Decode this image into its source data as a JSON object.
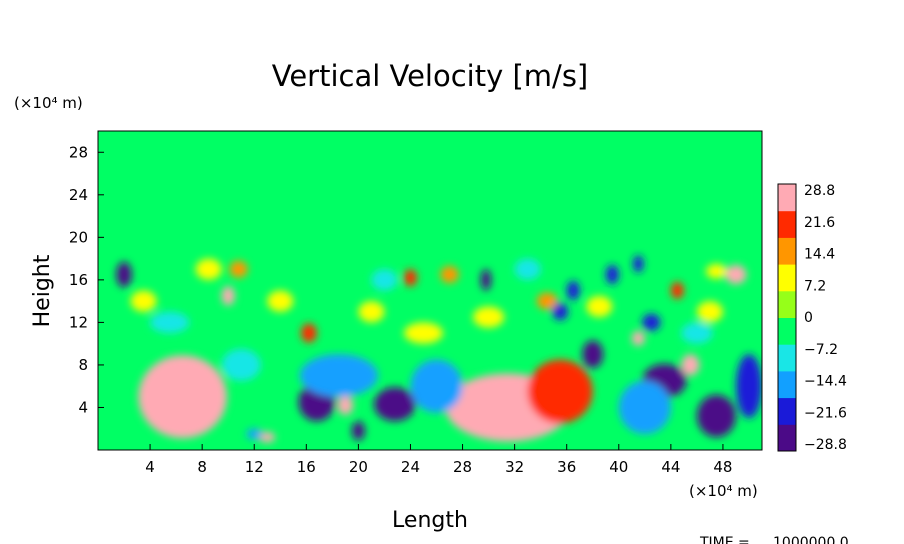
{
  "chart_data": {
    "type": "heatmap",
    "title": "Vertical Velocity [m/s]",
    "xlabel": "Length",
    "ylabel": "Height",
    "x_unit": "(×10⁴ m)",
    "y_unit": "(×10⁴ m)",
    "xlim": [
      0,
      51
    ],
    "ylim": [
      0,
      30
    ],
    "xticks": [
      "4",
      "8",
      "12",
      "16",
      "20",
      "24",
      "28",
      "32",
      "36",
      "40",
      "44",
      "48"
    ],
    "yticks": [
      "4",
      "8",
      "12",
      "16",
      "20",
      "24",
      "28"
    ],
    "colorbar": {
      "labels": [
        "28.8",
        "21.6",
        "14.4",
        "7.2",
        "0",
        "−7.2",
        "−14.4",
        "−21.6",
        "−28.8"
      ],
      "range": [
        -28.8,
        28.8
      ],
      "colors": [
        "#4b0a87",
        "#1a1ad8",
        "#12a0ff",
        "#19e6e6",
        "#00ff64",
        "#96ff19",
        "#ffff00",
        "#ff9600",
        "#ff2a00",
        "#ffaab4"
      ]
    },
    "background_value": 0,
    "cells": [
      {
        "x": 6.5,
        "y": 5.0,
        "v": 30,
        "rx": 3.4,
        "ry": 3.9
      },
      {
        "x": 6.8,
        "y": 5.5,
        "v": 45,
        "rx": 2.8,
        "ry": 3.2
      },
      {
        "x": 31.5,
        "y": 4.0,
        "v": 30,
        "rx": 4.8,
        "ry": 3.2
      },
      {
        "x": 31.0,
        "y": 3.3,
        "v": 45,
        "rx": 2.5,
        "ry": 2.0
      },
      {
        "x": 35.5,
        "y": 5.5,
        "v": 20,
        "rx": 2.5,
        "ry": 3.0
      },
      {
        "x": 13.0,
        "y": 1.2,
        "v": 26,
        "rx": 0.6,
        "ry": 0.5
      },
      {
        "x": 19.0,
        "y": 4.2,
        "v": 26,
        "rx": 0.6,
        "ry": 0.9
      },
      {
        "x": 10.0,
        "y": 14.5,
        "v": 24,
        "rx": 0.5,
        "ry": 0.9
      },
      {
        "x": 10.8,
        "y": 17.0,
        "v": 14,
        "rx": 0.7,
        "ry": 0.8
      },
      {
        "x": 16.2,
        "y": 11.0,
        "v": 18,
        "rx": 0.6,
        "ry": 0.9
      },
      {
        "x": 24.0,
        "y": 16.2,
        "v": 20,
        "rx": 0.5,
        "ry": 0.8
      },
      {
        "x": 27.0,
        "y": 16.5,
        "v": 12,
        "rx": 0.7,
        "ry": 0.8
      },
      {
        "x": 34.5,
        "y": 14.0,
        "v": 14,
        "rx": 0.8,
        "ry": 0.8
      },
      {
        "x": 41.5,
        "y": 10.5,
        "v": 26,
        "rx": 0.5,
        "ry": 0.7
      },
      {
        "x": 45.5,
        "y": 8.0,
        "v": 26,
        "rx": 0.7,
        "ry": 1.0
      },
      {
        "x": 49.0,
        "y": 16.5,
        "v": 30,
        "rx": 0.8,
        "ry": 0.9
      },
      {
        "x": 44.5,
        "y": 15.0,
        "v": 18,
        "rx": 0.5,
        "ry": 0.8
      },
      {
        "x": 47.5,
        "y": 16.8,
        "v": 10,
        "rx": 0.8,
        "ry": 0.7
      },
      {
        "x": 2.0,
        "y": 16.5,
        "v": -26,
        "rx": 0.6,
        "ry": 1.2
      },
      {
        "x": 16.8,
        "y": 4.5,
        "v": -30,
        "rx": 1.4,
        "ry": 1.8
      },
      {
        "x": 22.8,
        "y": 4.3,
        "v": -30,
        "rx": 1.6,
        "ry": 1.6
      },
      {
        "x": 20.0,
        "y": 1.8,
        "v": -28,
        "rx": 0.5,
        "ry": 0.9
      },
      {
        "x": 38.0,
        "y": 9.0,
        "v": -28,
        "rx": 0.8,
        "ry": 1.3
      },
      {
        "x": 43.5,
        "y": 6.5,
        "v": -30,
        "rx": 1.7,
        "ry": 1.6
      },
      {
        "x": 47.5,
        "y": 3.2,
        "v": -30,
        "rx": 1.5,
        "ry": 2.0
      },
      {
        "x": 29.8,
        "y": 16.0,
        "v": -24,
        "rx": 0.4,
        "ry": 1.0
      },
      {
        "x": 36.5,
        "y": 15.0,
        "v": -22,
        "rx": 0.5,
        "ry": 0.9
      },
      {
        "x": 39.5,
        "y": 16.5,
        "v": -22,
        "rx": 0.5,
        "ry": 0.9
      },
      {
        "x": 41.5,
        "y": 17.5,
        "v": -20,
        "rx": 0.4,
        "ry": 0.8
      },
      {
        "x": 42.5,
        "y": 12.0,
        "v": -22,
        "rx": 0.7,
        "ry": 0.8
      },
      {
        "x": 35.5,
        "y": 13.0,
        "v": -22,
        "rx": 0.6,
        "ry": 0.8
      },
      {
        "x": 50.0,
        "y": 6.0,
        "v": -18,
        "rx": 1.0,
        "ry": 3.0
      },
      {
        "x": 18.5,
        "y": 7.0,
        "v": -14,
        "rx": 3.0,
        "ry": 2.0
      },
      {
        "x": 26.0,
        "y": 6.0,
        "v": -12,
        "rx": 2.0,
        "ry": 2.5
      },
      {
        "x": 42.0,
        "y": 4.0,
        "v": -12,
        "rx": 2.0,
        "ry": 2.5
      },
      {
        "x": 11.0,
        "y": 8.0,
        "v": -10,
        "rx": 1.5,
        "ry": 1.5
      },
      {
        "x": 5.5,
        "y": 12.0,
        "v": -10,
        "rx": 1.5,
        "ry": 1.0
      },
      {
        "x": 22.0,
        "y": 16.0,
        "v": -8,
        "rx": 1.0,
        "ry": 1.0
      },
      {
        "x": 33.0,
        "y": 17.0,
        "v": -8,
        "rx": 1.0,
        "ry": 1.0
      },
      {
        "x": 46.0,
        "y": 11.0,
        "v": -10,
        "rx": 1.2,
        "ry": 1.0
      },
      {
        "x": 12.0,
        "y": 1.5,
        "v": -14,
        "rx": 0.6,
        "ry": 0.5
      },
      {
        "x": 25.0,
        "y": 11.0,
        "v": 8,
        "rx": 1.5,
        "ry": 1.0
      },
      {
        "x": 30.0,
        "y": 12.5,
        "v": 7,
        "rx": 1.2,
        "ry": 1.0
      },
      {
        "x": 14.0,
        "y": 14.0,
        "v": 8,
        "rx": 1.0,
        "ry": 1.0
      },
      {
        "x": 38.5,
        "y": 13.5,
        "v": 9,
        "rx": 1.0,
        "ry": 1.0
      },
      {
        "x": 8.5,
        "y": 17.0,
        "v": 6,
        "rx": 1.0,
        "ry": 1.0
      },
      {
        "x": 21.0,
        "y": 13.0,
        "v": 8,
        "rx": 1.0,
        "ry": 1.0
      },
      {
        "x": 3.5,
        "y": 14.0,
        "v": 8,
        "rx": 1.0,
        "ry": 1.0
      },
      {
        "x": 47.0,
        "y": 13.0,
        "v": 8,
        "rx": 1.0,
        "ry": 1.0
      }
    ]
  },
  "footer": {
    "time_label": "TIME =",
    "time_value": "1000000.0"
  }
}
